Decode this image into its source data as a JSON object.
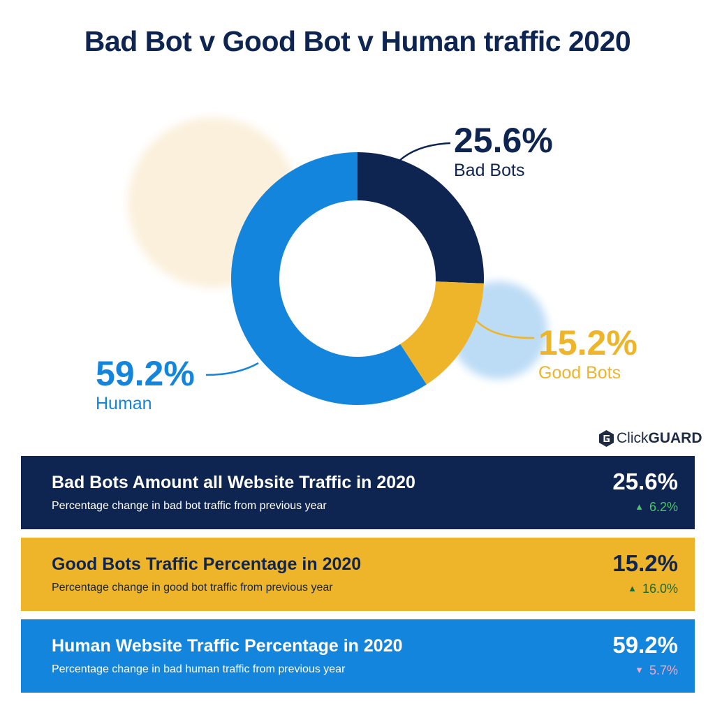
{
  "title": "Bad Bot v Good Bot v Human traffic 2020",
  "brand": {
    "name_light": "Click",
    "name_bold": "GUARD"
  },
  "colors": {
    "bad": "#0f2551",
    "good": "#efb52a",
    "human": "#1385dc",
    "up": "#4cc36b",
    "down": "#f7a6bf"
  },
  "chart_data": {
    "type": "pie",
    "donut": true,
    "categories": [
      "Bad Bots",
      "Good Bots",
      "Human"
    ],
    "values": [
      25.6,
      15.2,
      59.2
    ],
    "labels": [
      "25.6%",
      "15.2%",
      "59.2%"
    ]
  },
  "callouts": {
    "bad": {
      "pct": "25.6%",
      "label": "Bad Bots"
    },
    "good": {
      "pct": "15.2%",
      "label": "Good Bots"
    },
    "human": {
      "pct": "59.2%",
      "label": "Human"
    }
  },
  "cards": {
    "bad": {
      "title": "Bad Bots Amount all Website Traffic in 2020",
      "subtitle": "Percentage change in bad bot traffic from previous year",
      "value": "25.6%",
      "change": "6.2%",
      "direction": "up"
    },
    "good": {
      "title": "Good Bots Traffic Percentage in 2020",
      "subtitle": "Percentage change in good bot traffic from previous year",
      "value": "15.2%",
      "change": "16.0%",
      "direction": "up"
    },
    "human": {
      "title": "Human Website Traffic Percentage in 2020",
      "subtitle": "Percentage change in bad human traffic from previous year",
      "value": "59.2%",
      "change": "5.7%",
      "direction": "down"
    }
  }
}
